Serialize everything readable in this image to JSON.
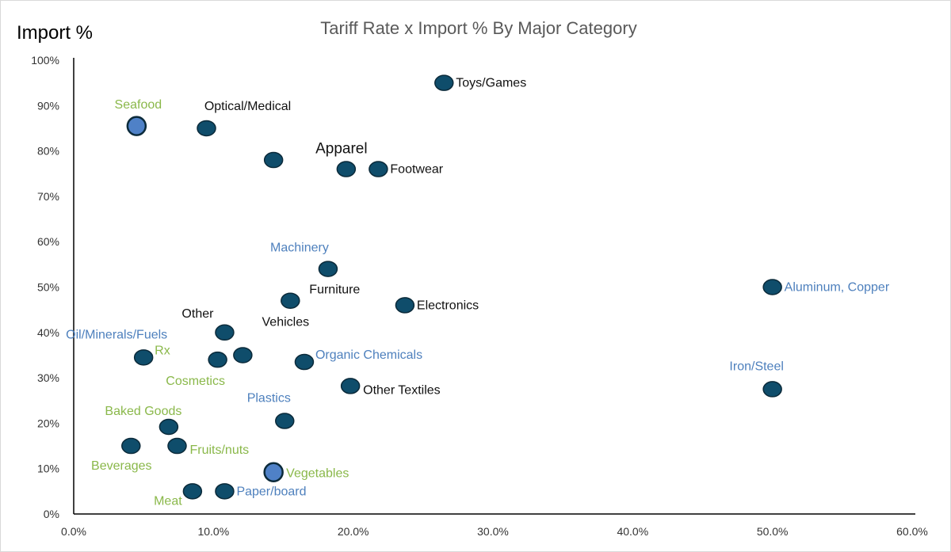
{
  "chart_data": {
    "type": "scatter",
    "title": "Tariff Rate x Import % By Major Category",
    "ylabel": "Import %",
    "xlabel": "",
    "xlim": [
      0,
      60
    ],
    "ylim": [
      0,
      100
    ],
    "x_ticks": [
      "0.0%",
      "10.0%",
      "20.0%",
      "30.0%",
      "40.0%",
      "50.0%",
      "60.0%"
    ],
    "y_ticks": [
      "0%",
      "10%",
      "20%",
      "30%",
      "40%",
      "50%",
      "60%",
      "70%",
      "80%",
      "90%",
      "100%"
    ],
    "grid": false,
    "colors": {
      "point": "#0f4d6b",
      "highlight": "#4f81c7",
      "point_outline": "#0b2a3a",
      "label_black": "#111111",
      "label_blue": "#4e80bd",
      "label_green": "#8ab84a",
      "title": "#595959",
      "axis": "#000000",
      "tick": "#333333"
    },
    "points": [
      {
        "x": 26.5,
        "y": 95,
        "label": "Toys/Games",
        "label_color": "label_black",
        "label_pos": "right"
      },
      {
        "x": 4.5,
        "y": 85.5,
        "label": "Seafood",
        "label_color": "label_green",
        "label_pos": "above",
        "highlight": true
      },
      {
        "x": 9.5,
        "y": 85,
        "label": "Optical/Medical",
        "label_color": "label_black",
        "label_pos": "above-right"
      },
      {
        "x": 14.3,
        "y": 78,
        "label": "",
        "label_color": "label_black",
        "label_pos": "none"
      },
      {
        "x": 19.5,
        "y": 76,
        "label": "Apparel",
        "label_color": "label_black",
        "label_pos": "above"
      },
      {
        "x": 21.8,
        "y": 76,
        "label": "Footwear",
        "label_color": "label_black",
        "label_pos": "right"
      },
      {
        "x": 18.2,
        "y": 54,
        "label": "Machinery",
        "label_color": "label_blue",
        "label_pos": "above-left"
      },
      {
        "x": 15.5,
        "y": 47,
        "label": "Furniture",
        "label_color": "label_black",
        "label_pos": "above-right"
      },
      {
        "x": 15.5,
        "y": 47,
        "label": "Vehicles",
        "label_color": "label_black",
        "label_pos": "below"
      },
      {
        "x": 23.7,
        "y": 46,
        "label": "Electronics",
        "label_color": "label_black",
        "label_pos": "right"
      },
      {
        "x": 50.0,
        "y": 50,
        "label": "Aluminum, Copper",
        "label_color": "label_blue",
        "label_pos": "right"
      },
      {
        "x": 10.8,
        "y": 40,
        "label": "Other",
        "label_color": "label_black",
        "label_pos": "above-left"
      },
      {
        "x": 5.0,
        "y": 34.5,
        "label": "Oil/Minerals/Fuels",
        "label_color": "label_blue",
        "label_pos": "above-left"
      },
      {
        "x": 5.0,
        "y": 34.5,
        "label": "Rx",
        "label_color": "label_green",
        "label_pos": "right-up"
      },
      {
        "x": 10.3,
        "y": 34,
        "label": "Cosmetics",
        "label_color": "label_green",
        "label_pos": "below-left"
      },
      {
        "x": 12.1,
        "y": 35,
        "label": "",
        "label_color": "label_black",
        "label_pos": "none"
      },
      {
        "x": 16.5,
        "y": 33.5,
        "label": "Organic Chemicals",
        "label_color": "label_blue",
        "label_pos": "right-up"
      },
      {
        "x": 50.0,
        "y": 27.5,
        "label": "Iron/Steel",
        "label_color": "label_blue",
        "label_pos": "above-left"
      },
      {
        "x": 19.8,
        "y": 28.2,
        "label": "Other Textiles",
        "label_color": "label_black",
        "label_pos": "right-down"
      },
      {
        "x": 15.1,
        "y": 20.5,
        "label": "Plastics",
        "label_color": "label_blue",
        "label_pos": "above-left"
      },
      {
        "x": 6.8,
        "y": 19.2,
        "label": "Baked Goods",
        "label_color": "label_green",
        "label_pos": "above-left"
      },
      {
        "x": 4.1,
        "y": 15,
        "label": "Beverages",
        "label_color": "label_green",
        "label_pos": "below-left"
      },
      {
        "x": 7.4,
        "y": 15,
        "label": "Fruits/nuts",
        "label_color": "label_green",
        "label_pos": "right-down"
      },
      {
        "x": 14.3,
        "y": 9.2,
        "label": "Vegetables",
        "label_color": "label_green",
        "label_pos": "right",
        "highlight": true
      },
      {
        "x": 8.5,
        "y": 5,
        "label": "Meat",
        "label_color": "label_green",
        "label_pos": "below-left"
      },
      {
        "x": 10.8,
        "y": 5,
        "label": "Paper/board",
        "label_color": "label_blue",
        "label_pos": "right"
      }
    ]
  }
}
